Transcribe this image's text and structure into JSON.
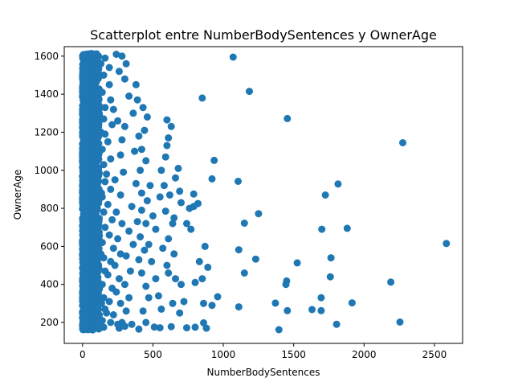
{
  "chart_data": {
    "type": "scatter",
    "title": "Scatterplot entre NumberBodySentences y OwnerAge",
    "xlabel": "NumberBodySentences",
    "ylabel": "OwnerAge",
    "xlim": [
      -130,
      2700
    ],
    "ylim": [
      90,
      1650
    ],
    "xticks": [
      0,
      500,
      1000,
      1500,
      2000,
      2500
    ],
    "yticks": [
      200,
      400,
      600,
      800,
      1000,
      1200,
      1400,
      1600
    ],
    "grid": false,
    "color": "#1f77b4",
    "dense_region": {
      "x": [
        0,
        120
      ],
      "y": [
        160,
        1615
      ]
    },
    "points": [
      [
        1070,
        1595
      ],
      [
        1185,
        1415
      ],
      [
        1455,
        1272
      ],
      [
        2275,
        1145
      ],
      [
        850,
        1380
      ],
      [
        935,
        1052
      ],
      [
        920,
        955
      ],
      [
        1105,
        942
      ],
      [
        1815,
        928
      ],
      [
        1725,
        870
      ],
      [
        1250,
        772
      ],
      [
        1150,
        722
      ],
      [
        1700,
        690
      ],
      [
        1880,
        695
      ],
      [
        2585,
        615
      ],
      [
        1110,
        582
      ],
      [
        1765,
        540
      ],
      [
        1230,
        533
      ],
      [
        1525,
        513
      ],
      [
        890,
        490
      ],
      [
        1150,
        460
      ],
      [
        1760,
        440
      ],
      [
        1450,
        418
      ],
      [
        1445,
        400
      ],
      [
        2190,
        412
      ],
      [
        960,
        335
      ],
      [
        1695,
        330
      ],
      [
        1370,
        302
      ],
      [
        1915,
        303
      ],
      [
        920,
        290
      ],
      [
        1110,
        282
      ],
      [
        1630,
        268
      ],
      [
        1695,
        262
      ],
      [
        1455,
        262
      ],
      [
        1805,
        190
      ],
      [
        2255,
        202
      ],
      [
        1395,
        162
      ],
      [
        860,
        198
      ],
      [
        880,
        170
      ],
      [
        800,
        175
      ],
      [
        740,
        172
      ],
      [
        630,
        178
      ],
      [
        550,
        172
      ],
      [
        510,
        176
      ],
      [
        860,
        300
      ],
      [
        850,
        430
      ],
      [
        800,
        410
      ],
      [
        830,
        520
      ],
      [
        870,
        600
      ],
      [
        770,
        690
      ],
      [
        790,
        810
      ],
      [
        760,
        800
      ],
      [
        790,
        875
      ],
      [
        820,
        825
      ],
      [
        700,
        830
      ],
      [
        740,
        720
      ],
      [
        650,
        750
      ],
      [
        690,
        890
      ],
      [
        660,
        960
      ],
      [
        680,
        1010
      ],
      [
        600,
        1130
      ],
      [
        610,
        1170
      ],
      [
        630,
        1230
      ],
      [
        600,
        1265
      ],
      [
        590,
        1070
      ],
      [
        560,
        1000
      ],
      [
        580,
        920
      ],
      [
        620,
        870
      ],
      [
        550,
        860
      ],
      [
        590,
        785
      ],
      [
        640,
        720
      ],
      [
        610,
        640
      ],
      [
        570,
        590
      ],
      [
        650,
        560
      ],
      [
        600,
        500
      ],
      [
        610,
        460
      ],
      [
        660,
        430
      ],
      [
        700,
        400
      ],
      [
        720,
        310
      ],
      [
        690,
        250
      ],
      [
        640,
        300
      ],
      [
        560,
        270
      ],
      [
        540,
        340
      ],
      [
        520,
        430
      ],
      [
        490,
        520
      ],
      [
        470,
        610
      ],
      [
        520,
        690
      ],
      [
        500,
        760
      ],
      [
        460,
        840
      ],
      [
        480,
        920
      ],
      [
        450,
        1050
      ],
      [
        420,
        1110
      ],
      [
        440,
        1210
      ],
      [
        460,
        1280
      ],
      [
        430,
        1330
      ],
      [
        380,
        1450
      ],
      [
        390,
        1370
      ],
      [
        330,
        1390
      ],
      [
        360,
        1300
      ],
      [
        400,
        1180
      ],
      [
        370,
        1100
      ],
      [
        410,
        1000
      ],
      [
        380,
        930
      ],
      [
        420,
        880
      ],
      [
        350,
        810
      ],
      [
        390,
        730
      ],
      [
        330,
        680
      ],
      [
        360,
        610
      ],
      [
        310,
        550
      ],
      [
        340,
        470
      ],
      [
        300,
        400
      ],
      [
        330,
        330
      ],
      [
        310,
        260
      ],
      [
        280,
        200
      ],
      [
        260,
        170
      ],
      [
        300,
        180
      ],
      [
        350,
        190
      ],
      [
        400,
        165
      ],
      [
        450,
        200
      ],
      [
        430,
        260
      ],
      [
        470,
        330
      ],
      [
        450,
        390
      ],
      [
        420,
        460
      ],
      [
        400,
        530
      ],
      [
        440,
        580
      ],
      [
        410,
        650
      ],
      [
        450,
        720
      ],
      [
        420,
        790
      ],
      [
        300,
        1230
      ],
      [
        280,
        1160
      ],
      [
        260,
        1520
      ],
      [
        300,
        1480
      ],
      [
        280,
        1600
      ],
      [
        310,
        1560
      ],
      [
        240,
        1610
      ],
      [
        220,
        1320
      ],
      [
        250,
        1260
      ],
      [
        270,
        1080
      ],
      [
        290,
        990
      ],
      [
        230,
        950
      ],
      [
        270,
        870
      ],
      [
        240,
        780
      ],
      [
        280,
        720
      ],
      [
        250,
        640
      ],
      [
        270,
        560
      ],
      [
        230,
        500
      ],
      [
        260,
        430
      ],
      [
        240,
        360
      ],
      [
        270,
        300
      ],
      [
        220,
        240
      ],
      [
        250,
        190
      ],
      [
        190,
        1450
      ],
      [
        200,
        1370
      ],
      [
        210,
        1240
      ],
      [
        180,
        1150
      ],
      [
        200,
        1060
      ],
      [
        170,
        980
      ],
      [
        200,
        900
      ],
      [
        180,
        820
      ],
      [
        210,
        740
      ],
      [
        190,
        660
      ],
      [
        220,
        590
      ],
      [
        200,
        520
      ],
      [
        180,
        450
      ],
      [
        210,
        380
      ],
      [
        190,
        310
      ],
      [
        170,
        250
      ],
      [
        200,
        200
      ],
      [
        190,
        1540
      ],
      [
        160,
        1590
      ],
      [
        150,
        1500
      ],
      [
        140,
        1410
      ],
      [
        160,
        1330
      ],
      [
        150,
        1270
      ],
      [
        160,
        1190
      ],
      [
        140,
        1110
      ],
      [
        150,
        1030
      ],
      [
        160,
        940
      ],
      [
        140,
        860
      ],
      [
        150,
        780
      ],
      [
        160,
        700
      ],
      [
        140,
        620
      ],
      [
        150,
        540
      ],
      [
        160,
        470
      ],
      [
        140,
        400
      ],
      [
        150,
        330
      ],
      [
        160,
        270
      ],
      [
        140,
        210
      ],
      [
        150,
        175
      ],
      [
        130,
        1560
      ],
      [
        130,
        1200
      ],
      [
        135,
        880
      ],
      [
        130,
        560
      ],
      [
        135,
        300
      ]
    ]
  }
}
